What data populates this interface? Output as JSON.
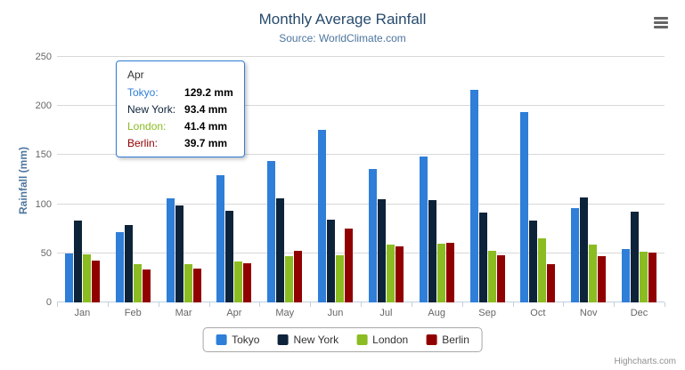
{
  "chart_data": {
    "type": "bar",
    "title": "Monthly Average Rainfall",
    "subtitle": "Source: WorldClimate.com",
    "categories": [
      "Jan",
      "Feb",
      "Mar",
      "Apr",
      "May",
      "Jun",
      "Jul",
      "Aug",
      "Sep",
      "Oct",
      "Nov",
      "Dec"
    ],
    "series": [
      {
        "name": "Tokyo",
        "color": "#2f7ed8",
        "values": [
          49.9,
          71.5,
          106.4,
          129.2,
          144.0,
          176.0,
          135.6,
          148.5,
          216.4,
          194.1,
          95.6,
          54.4
        ]
      },
      {
        "name": "New York",
        "color": "#0d233a",
        "values": [
          83.6,
          78.8,
          98.5,
          93.4,
          106.0,
          84.5,
          105.0,
          104.3,
          91.2,
          83.5,
          106.6,
          92.3
        ]
      },
      {
        "name": "London",
        "color": "#8bbc21",
        "values": [
          48.9,
          38.8,
          39.3,
          41.4,
          47.0,
          48.3,
          59.0,
          59.6,
          52.4,
          65.2,
          59.3,
          51.2
        ]
      },
      {
        "name": "Berlin",
        "color": "#910000",
        "values": [
          42.4,
          33.2,
          34.5,
          39.7,
          52.6,
          75.5,
          57.4,
          60.4,
          47.6,
          39.1,
          46.8,
          51.1
        ]
      }
    ],
    "xlabel": "",
    "ylabel": "Rainfall (mm)",
    "ylim": [
      0,
      250
    ],
    "yticks": [
      0,
      50,
      100,
      150,
      200,
      250
    ],
    "grid": true,
    "legend_position": "bottom"
  },
  "tooltip": {
    "header": "Apr",
    "rows": [
      {
        "name": "Tokyo",
        "value": "129.2 mm",
        "color": "#2f7ed8"
      },
      {
        "name": "New York",
        "value": "93.4 mm",
        "color": "#0d233a"
      },
      {
        "name": "London",
        "value": "41.4 mm",
        "color": "#8bbc21"
      },
      {
        "name": "Berlin",
        "value": "39.7 mm",
        "color": "#910000"
      }
    ]
  },
  "legend": {
    "items": [
      "Tokyo",
      "New York",
      "London",
      "Berlin"
    ]
  },
  "credits": "Highcharts.com",
  "icons": {
    "export_menu": "hamburger-icon"
  },
  "colors": {
    "grid": "#d8d8d8",
    "axis_line": "#c0d0e0",
    "title": "#274b6d",
    "subtitle": "#4d759e"
  }
}
